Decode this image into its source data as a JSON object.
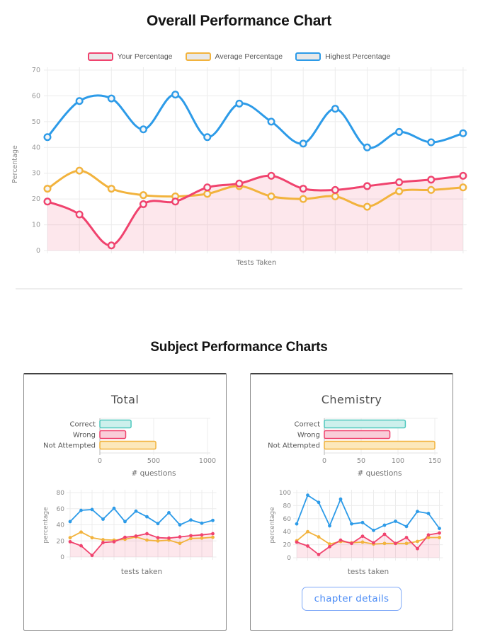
{
  "headings": {
    "overall": "Overall Performance Chart",
    "subject": "Subject Performance Charts"
  },
  "button": {
    "label": "chapter details"
  },
  "colors": {
    "your_pink": "#f0436e",
    "average_yellow": "#f2b33d",
    "highest_blue": "#2d9be8",
    "correct_teal": "#4fc8be",
    "pink_area_fill": "rgba(240,67,110,0.13)",
    "grid": "#ececec",
    "button_blue": "#4d8df6"
  },
  "chart_data": [
    {
      "id": "overall-line",
      "type": "line",
      "title": "Overall Performance Chart",
      "xlabel": "Tests Taken",
      "ylabel": "Percentage",
      "ylim": [
        0,
        70
      ],
      "yticks": [
        0,
        10,
        20,
        30,
        40,
        50,
        60,
        70
      ],
      "x": [
        1,
        2,
        3,
        4,
        5,
        6,
        7,
        8,
        9,
        10,
        11,
        12,
        13,
        14
      ],
      "grid": true,
      "legend_position": "top",
      "series": [
        {
          "name": "Your Percentage",
          "color": "#f0436e",
          "fill": "rgba(240,67,110,0.13)",
          "values": [
            19,
            14,
            2,
            18,
            19,
            24.5,
            26,
            29,
            24,
            23.5,
            25,
            26.5,
            27.5,
            29
          ]
        },
        {
          "name": "Average Percentage",
          "color": "#f2b33d",
          "values": [
            24,
            31,
            24,
            21.5,
            21,
            22,
            25,
            21,
            20,
            21,
            17,
            23,
            23.5,
            24.5
          ]
        },
        {
          "name": "Highest Percentage",
          "color": "#2d9be8",
          "values": [
            44,
            58,
            59,
            47,
            60.5,
            44,
            57,
            50,
            41.5,
            55,
            40,
            46,
            42,
            45.5
          ]
        }
      ]
    },
    {
      "id": "total-bar",
      "type": "bar",
      "orientation": "horizontal",
      "title": "Total",
      "xlabel": "# questions",
      "categories": [
        "Correct",
        "Wrong",
        "Not Attempted"
      ],
      "values": [
        290,
        240,
        520
      ],
      "xlim": [
        0,
        1000
      ],
      "xticks": [
        0,
        500,
        1000
      ],
      "bar_colors": [
        {
          "stroke": "#4fc8be",
          "fill": "#cdf0ec"
        },
        {
          "stroke": "#f0436e",
          "fill": "#f9cdd8"
        },
        {
          "stroke": "#f2b33d",
          "fill": "#fce8bb"
        }
      ]
    },
    {
      "id": "total-line",
      "type": "line",
      "xlabel": "tests taken",
      "ylabel": "percentage",
      "ylim": [
        0,
        80
      ],
      "yticks": [
        0,
        20,
        40,
        60,
        80
      ],
      "x": [
        1,
        2,
        3,
        4,
        5,
        6,
        7,
        8,
        9,
        10,
        11,
        12,
        13,
        14
      ],
      "grid": true,
      "series": [
        {
          "name": "Your Percentage",
          "color": "#f0436e",
          "fill": "rgba(240,67,110,0.13)",
          "values": [
            19,
            14,
            2,
            18,
            19,
            24.5,
            26,
            29,
            24,
            23.5,
            25,
            26.5,
            27.5,
            29
          ]
        },
        {
          "name": "Average Percentage",
          "color": "#f2b33d",
          "values": [
            24,
            31,
            24,
            21.5,
            21,
            22,
            25,
            21,
            20,
            21,
            17,
            23,
            23.5,
            24.5
          ]
        },
        {
          "name": "Highest Percentage",
          "color": "#2d9be8",
          "values": [
            44,
            58,
            59,
            47,
            60.5,
            44,
            57,
            50,
            41.5,
            55,
            40,
            46,
            42,
            45.5
          ]
        }
      ]
    },
    {
      "id": "chemistry-bar",
      "type": "bar",
      "orientation": "horizontal",
      "title": "Chemistry",
      "xlabel": "# questions",
      "categories": [
        "Correct",
        "Wrong",
        "Not Attempted"
      ],
      "values": [
        110,
        89,
        150
      ],
      "xlim": [
        0,
        150
      ],
      "xticks": [
        0,
        50,
        100,
        150
      ],
      "bar_colors": [
        {
          "stroke": "#4fc8be",
          "fill": "#cdf0ec"
        },
        {
          "stroke": "#f0436e",
          "fill": "#f9cdd8"
        },
        {
          "stroke": "#f2b33d",
          "fill": "#fce8bb"
        }
      ]
    },
    {
      "id": "chemistry-line",
      "type": "line",
      "xlabel": "tests taken",
      "ylabel": "percentage",
      "ylim": [
        0,
        100
      ],
      "yticks": [
        0,
        20,
        40,
        60,
        80,
        100
      ],
      "x": [
        1,
        2,
        3,
        4,
        5,
        6,
        7,
        8,
        9,
        10,
        11,
        12,
        13,
        14
      ],
      "grid": true,
      "series": [
        {
          "name": "Your Percentage",
          "color": "#f0436e",
          "fill": "rgba(240,67,110,0.13)",
          "values": [
            24,
            18,
            5,
            17,
            27,
            22,
            33,
            23,
            36,
            22,
            31,
            14,
            35,
            38
          ]
        },
        {
          "name": "Average Percentage",
          "color": "#f2b33d",
          "values": [
            26,
            40,
            32,
            21,
            25,
            23,
            24,
            21,
            22,
            22,
            22,
            25,
            31,
            31
          ]
        },
        {
          "name": "Highest Percentage",
          "color": "#2d9be8",
          "values": [
            52,
            96,
            85,
            49,
            90,
            52,
            54,
            42,
            50,
            56,
            48,
            71,
            68,
            45
          ]
        }
      ]
    }
  ]
}
